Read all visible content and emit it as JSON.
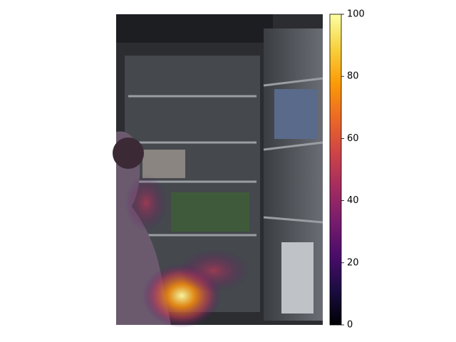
{
  "chart_data": {
    "type": "heatmap",
    "colormap": "inferno",
    "colorbar": {
      "lim": [
        0,
        100
      ],
      "ticks": [
        0,
        20,
        40,
        60,
        80,
        100
      ]
    }
  }
}
